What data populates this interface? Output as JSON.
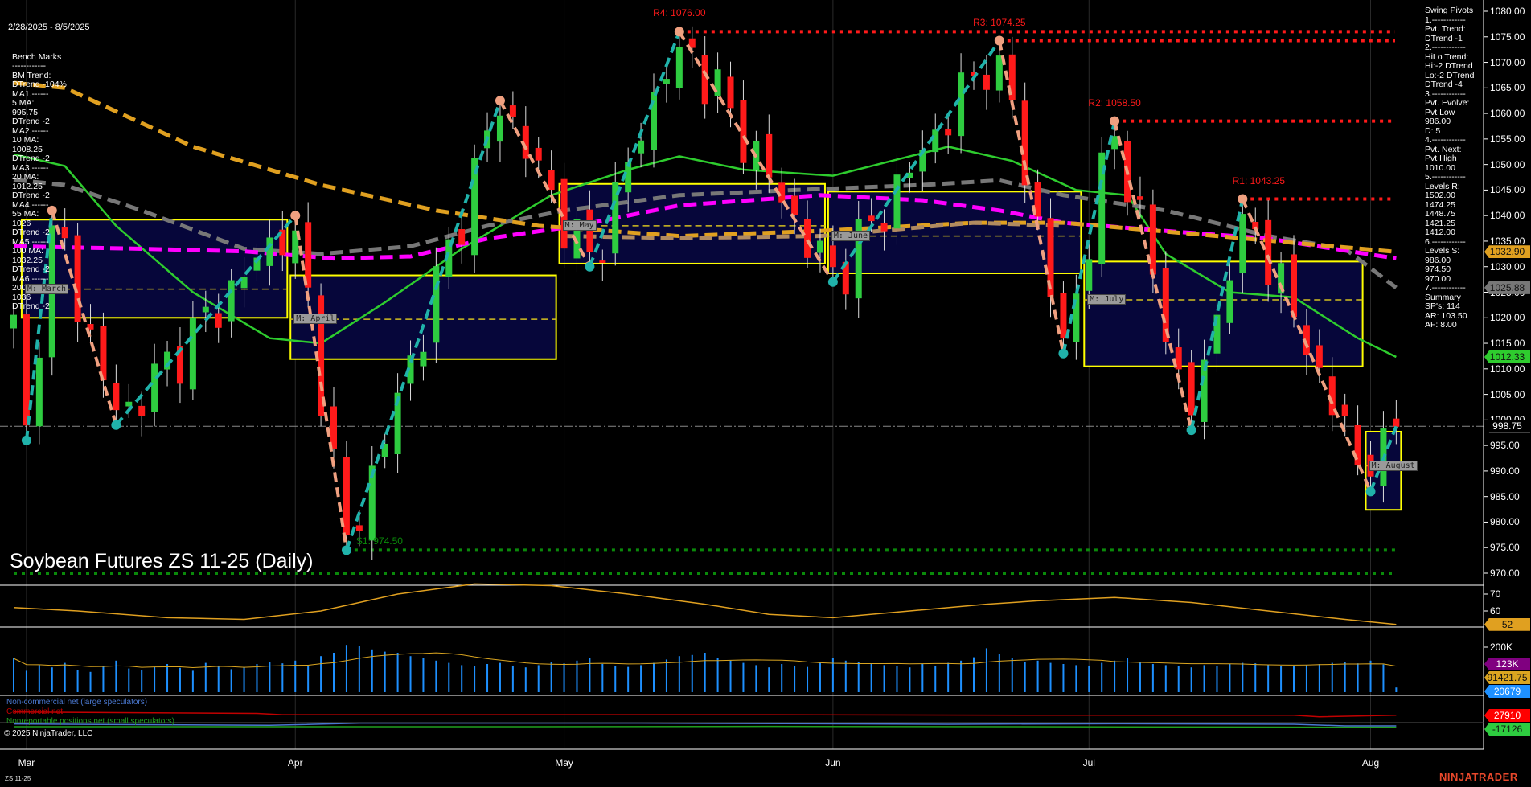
{
  "left_info": {
    "date_range": "2/28/2025 - 8/5/2025",
    "lines": [
      "Bench Marks",
      "------------",
      "BM Trend:",
      "DTrend -104%",
      "MA1.------",
      "5 MA:",
      "995.75",
      "DTrend -2",
      "MA2.------",
      "10 MA:",
      "1008.25",
      "DTrend -2",
      "MA3.------",
      "20 MA:",
      "1012.25",
      "DTrend -2",
      "MA4.------",
      "55 MA:",
      "1026",
      "DTrend -2",
      "MA5.------",
      "100 MA:",
      "1032.25",
      "DTrend -2",
      "MA6.------",
      "200 MA:",
      "1036",
      "DTrend -2"
    ]
  },
  "right_info": {
    "lines": [
      "Swing Pivots",
      "1.------------",
      "Pvt. Trend:",
      "DTrend -1",
      "2.------------",
      "HiLo Trend:",
      "Hi:-2 DTrend",
      "Lo:-2 DTrend",
      "DTrend -4",
      "3.------------",
      "Pvt. Evolve:",
      "Pvt Low",
      "986.00",
      "D: 5",
      "4.------------",
      "Pvt. Next:",
      "Pvt High",
      "1010.00",
      "5.------------",
      "Levels R:",
      "1502.00",
      "1474.25",
      "1448.75",
      "1421.25",
      "1412.00",
      "6.------------",
      "Levels S:",
      "986.00",
      "974.50",
      "970.00",
      "7.------------",
      "Summary",
      "SP's: 114",
      "AR: 103.50",
      "AF: 8.00"
    ]
  },
  "title": "Soybean Futures ZS 11-25 (Daily)",
  "copyright": "© 2025 NinjaTrader, LLC",
  "instrument_label": "ZS 11-25",
  "brand": "NINJATRADER",
  "chart_data": {
    "type": "candlestick",
    "start_date": "2025-02-28",
    "end_date": "2025-08-05",
    "holidays": [
      "2025-04-18",
      "2025-05-26",
      "2025-06-19",
      "2025-07-04"
    ],
    "x_tick_labels": [
      {
        "label": "Mar",
        "date": "2025-03-03"
      },
      {
        "label": "Apr",
        "date": "2025-04-01"
      },
      {
        "label": "May",
        "date": "2025-05-01"
      },
      {
        "label": "Jun",
        "date": "2025-06-02"
      },
      {
        "label": "Jul",
        "date": "2025-07-01"
      },
      {
        "label": "Aug",
        "date": "2025-08-01"
      }
    ],
    "price_axis": {
      "ylim": [
        970,
        1080
      ],
      "ticks": [
        1080,
        1075,
        1070,
        1065,
        1060,
        1055,
        1050,
        1045,
        1040,
        1035,
        1030,
        1025,
        1020,
        1015,
        1010,
        1005,
        1000,
        995,
        990,
        985,
        980,
        975,
        970
      ]
    },
    "last_price": 998.75,
    "start_close": 1018,
    "swing_pivots": [
      {
        "date": "2025-03-03",
        "value": 996,
        "type": "low"
      },
      {
        "date": "2025-03-05",
        "value": 1041,
        "type": "high"
      },
      {
        "date": "2025-03-12",
        "value": 999,
        "type": "low"
      },
      {
        "date": "2025-04-01",
        "value": 1040,
        "type": "high"
      },
      {
        "date": "2025-04-07",
        "value": 974.5,
        "type": "low"
      },
      {
        "date": "2025-04-24",
        "value": 1062.5,
        "type": "high"
      },
      {
        "date": "2025-05-05",
        "value": 1030,
        "type": "low"
      },
      {
        "date": "2025-05-14",
        "value": 1076,
        "type": "high"
      },
      {
        "date": "2025-06-02",
        "value": 1027,
        "type": "low"
      },
      {
        "date": "2025-06-20",
        "value": 1074.25,
        "type": "high"
      },
      {
        "date": "2025-06-27",
        "value": 1013,
        "type": "low"
      },
      {
        "date": "2025-07-03",
        "value": 1058.5,
        "type": "high"
      },
      {
        "date": "2025-07-14",
        "value": 998,
        "type": "low"
      },
      {
        "date": "2025-07-18",
        "value": 1043.25,
        "type": "high"
      },
      {
        "date": "2025-08-01",
        "value": 986,
        "type": "low"
      },
      {
        "date": "2025-08-05",
        "value": 998.75,
        "type": "last"
      }
    ],
    "resistance_levels": [
      {
        "label": "R4: 1076.00",
        "value": 1076,
        "from": "2025-05-14"
      },
      {
        "label": "R3: 1074.25",
        "value": 1074.25,
        "from": "2025-06-20"
      },
      {
        "label": "R2: 1058.50",
        "value": 1058.5,
        "from": "2025-07-03"
      },
      {
        "label": "R1: 1043.25",
        "value": 1043.25,
        "from": "2025-07-18"
      }
    ],
    "support_levels": [
      {
        "label": "S1: 974.50",
        "value": 974.5,
        "from": "2025-04-07"
      },
      {
        "label": "",
        "value": 970,
        "from": "2025-02-28"
      }
    ],
    "monthly_ranges": [
      {
        "label": "M: March",
        "from": "2025-03-03",
        "to": "2025-03-31",
        "high": 1039.2,
        "low": 1020,
        "mid": 1025.6
      },
      {
        "label": "M: April",
        "from": "2025-04-01",
        "to": "2025-04-30",
        "high": 1028.3,
        "low": 1011.9,
        "mid": 1019.7
      },
      {
        "label": "M: May",
        "from": "2025-05-01",
        "to": "2025-05-30",
        "high": 1046.2,
        "low": 1030.6,
        "mid": 1038
      },
      {
        "label": "M: June",
        "from": "2025-06-02",
        "to": "2025-06-30",
        "high": 1044.7,
        "low": 1028.7,
        "mid": 1036
      },
      {
        "label": "M: July",
        "from": "2025-07-01",
        "to": "2025-07-31",
        "high": 1031,
        "low": 1010.5,
        "mid": 1023.5
      },
      {
        "label": "M: August",
        "from": "2025-08-01",
        "to": "2025-08-05",
        "high": 997.7,
        "low": 982.4,
        "mid": 991
      }
    ],
    "moving_averages": [
      {
        "color": "#2ecc2e",
        "style": "solid",
        "last": "1012.33",
        "points": [
          [
            "2025-02-28",
            1052
          ],
          [
            "2025-03-06",
            1049.7
          ],
          [
            "2025-03-12",
            1038
          ],
          [
            "2025-03-20",
            1025
          ],
          [
            "2025-03-28",
            1016
          ],
          [
            "2025-04-03",
            1015
          ],
          [
            "2025-04-10",
            1023
          ],
          [
            "2025-04-21",
            1033.5
          ],
          [
            "2025-04-30",
            1044
          ],
          [
            "2025-05-08",
            1049
          ],
          [
            "2025-05-14",
            1051.6
          ],
          [
            "2025-05-21",
            1049
          ],
          [
            "2025-06-02",
            1047.8
          ],
          [
            "2025-06-10",
            1051.6
          ],
          [
            "2025-06-13",
            1053.5
          ],
          [
            "2025-06-23",
            1050.7
          ],
          [
            "2025-06-30",
            1045
          ],
          [
            "2025-07-07",
            1044
          ],
          [
            "2025-07-10",
            1032.5
          ],
          [
            "2025-07-17",
            1025
          ],
          [
            "2025-07-24",
            1024
          ],
          [
            "2025-07-31",
            1016
          ],
          [
            "2025-08-05",
            1012.33
          ]
        ]
      },
      {
        "color": "#777777",
        "style": "dash",
        "last": "1025.88",
        "points": [
          [
            "2025-02-28",
            1047
          ],
          [
            "2025-03-06",
            1046
          ],
          [
            "2025-03-14",
            1041
          ],
          [
            "2025-03-26",
            1033.5
          ],
          [
            "2025-04-03",
            1032.5
          ],
          [
            "2025-04-14",
            1034
          ],
          [
            "2025-04-23",
            1038
          ],
          [
            "2025-05-01",
            1041
          ],
          [
            "2025-05-14",
            1044
          ],
          [
            "2025-05-28",
            1045
          ],
          [
            "2025-06-11",
            1046
          ],
          [
            "2025-06-20",
            1046.9
          ],
          [
            "2025-06-27",
            1044
          ],
          [
            "2025-07-10",
            1041
          ],
          [
            "2025-07-22",
            1036
          ],
          [
            "2025-07-30",
            1033.5
          ],
          [
            "2025-08-05",
            1025.88
          ]
        ]
      },
      {
        "color": "#ff00ff",
        "style": "dash",
        "last": "",
        "points": [
          [
            "2025-02-28",
            1034
          ],
          [
            "2025-03-14",
            1033.5
          ],
          [
            "2025-03-26",
            1033
          ],
          [
            "2025-04-04",
            1031.6
          ],
          [
            "2025-04-14",
            1032
          ],
          [
            "2025-04-23",
            1035.5
          ],
          [
            "2025-05-02",
            1038
          ],
          [
            "2025-05-14",
            1042
          ],
          [
            "2025-05-30",
            1044
          ],
          [
            "2025-06-11",
            1043
          ],
          [
            "2025-06-20",
            1041
          ],
          [
            "2025-06-27",
            1038.6
          ],
          [
            "2025-07-10",
            1037
          ],
          [
            "2025-07-22",
            1035.5
          ],
          [
            "2025-08-05",
            1031.6
          ]
        ]
      },
      {
        "color": "#e0a020",
        "style": "dash",
        "last": "1032.90",
        "points": [
          [
            "2025-02-28",
            1066
          ],
          [
            "2025-03-06",
            1065
          ],
          [
            "2025-03-20",
            1053.5
          ],
          [
            "2025-04-03",
            1046
          ],
          [
            "2025-04-16",
            1041
          ],
          [
            "2025-04-29",
            1038
          ],
          [
            "2025-05-14",
            1036
          ],
          [
            "2025-05-30",
            1037
          ],
          [
            "2025-06-17",
            1038.6
          ],
          [
            "2025-06-27",
            1038.6
          ],
          [
            "2025-07-16",
            1036
          ],
          [
            "2025-08-05",
            1032.9
          ]
        ]
      },
      {
        "color": "#b08a60",
        "style": "dash",
        "last": "",
        "points": [
          [
            "2025-05-01",
            1036
          ],
          [
            "2025-05-14",
            1035.6
          ],
          [
            "2025-05-30",
            1036
          ],
          [
            "2025-06-17",
            1038.6
          ],
          [
            "2025-06-27",
            1038
          ]
        ]
      }
    ],
    "oscillator": {
      "ticks": [
        70,
        60
      ],
      "last": "52",
      "color": "#e0a020",
      "points": [
        [
          "2025-02-28",
          62
        ],
        [
          "2025-03-07",
          60
        ],
        [
          "2025-03-18",
          56
        ],
        [
          "2025-03-26",
          55
        ],
        [
          "2025-04-03",
          60
        ],
        [
          "2025-04-11",
          70
        ],
        [
          "2025-04-22",
          76
        ],
        [
          "2025-04-30",
          75
        ],
        [
          "2025-05-08",
          70
        ],
        [
          "2025-05-16",
          64
        ],
        [
          "2025-05-23",
          58
        ],
        [
          "2025-06-02",
          56
        ],
        [
          "2025-06-10",
          60
        ],
        [
          "2025-06-18",
          64
        ],
        [
          "2025-06-25",
          66
        ],
        [
          "2025-07-03",
          68
        ],
        [
          "2025-07-14",
          65
        ],
        [
          "2025-07-22",
          60
        ],
        [
          "2025-07-30",
          55
        ],
        [
          "2025-08-05",
          52
        ]
      ]
    },
    "volume": {
      "tick": "200K",
      "tick_value": 200,
      "unit": "K",
      "labels": [
        {
          "text": "123K",
          "color": "#800080"
        },
        {
          "text": "91421.75",
          "color": "#daa520"
        },
        {
          "text": "20679",
          "color": "#1e90ff"
        }
      ],
      "values": [
        150,
        95,
        120,
        110,
        130,
        100,
        90,
        115,
        140,
        105,
        98,
        112,
        125,
        108,
        95,
        130,
        118,
        102,
        110,
        125,
        135,
        128,
        140,
        115,
        160,
        175,
        210,
        205,
        190,
        180,
        175,
        160,
        150,
        140,
        130,
        120,
        115,
        125,
        130,
        118,
        110,
        120,
        135,
        128,
        140,
        150,
        125,
        118,
        112,
        120,
        130,
        145,
        160,
        165,
        175,
        150,
        140,
        130,
        120,
        110,
        125,
        118,
        112,
        130,
        150,
        140,
        135,
        128,
        120,
        115,
        110,
        125,
        118,
        130,
        140,
        155,
        195,
        170,
        150,
        135,
        140,
        130,
        125,
        120,
        118,
        130,
        140,
        150,
        135,
        125,
        120,
        115,
        110,
        120,
        118,
        125,
        130,
        128,
        122,
        118,
        115,
        120,
        125,
        130,
        135,
        128,
        140,
        123,
        20.679
      ]
    },
    "cot": {
      "series": [
        {
          "name": "Non-commercial net (large speculators)",
          "color": "#4a78d0",
          "points": [
            [
              "2025-02-28",
              -5000
            ],
            [
              "2025-03-28",
              -10000
            ],
            [
              "2025-04-08",
              -2000
            ],
            [
              "2025-05-09",
              -2000
            ],
            [
              "2025-06-13",
              -6000
            ],
            [
              "2025-07-03",
              -4000
            ],
            [
              "2025-07-24",
              -6000
            ],
            [
              "2025-07-30",
              -12000
            ],
            [
              "2025-08-05",
              -12000
            ]
          ]
        },
        {
          "name": "Commercial net",
          "color": "#c00000",
          "points": [
            [
              "2025-02-28",
              40000
            ],
            [
              "2025-03-27",
              35000
            ],
            [
              "2025-03-31",
              30000
            ],
            [
              "2025-05-23",
              30000
            ],
            [
              "2025-06-25",
              28000
            ],
            [
              "2025-07-24",
              28000
            ],
            [
              "2025-07-28",
              22000
            ],
            [
              "2025-08-05",
              27910
            ]
          ]
        },
        {
          "name": "Nonreportable positions net (small speculators)",
          "color": "#20a020",
          "points": [
            [
              "2025-02-28",
              -15000
            ],
            [
              "2025-04-28",
              -15000
            ],
            [
              "2025-05-23",
              -14000
            ],
            [
              "2025-07-30",
              -17000
            ],
            [
              "2025-08-05",
              -17126
            ]
          ]
        }
      ],
      "labels": [
        {
          "text": "27910",
          "color": "#ff0000"
        },
        {
          "text": "-17126",
          "color": "#2ecc40"
        }
      ]
    }
  }
}
